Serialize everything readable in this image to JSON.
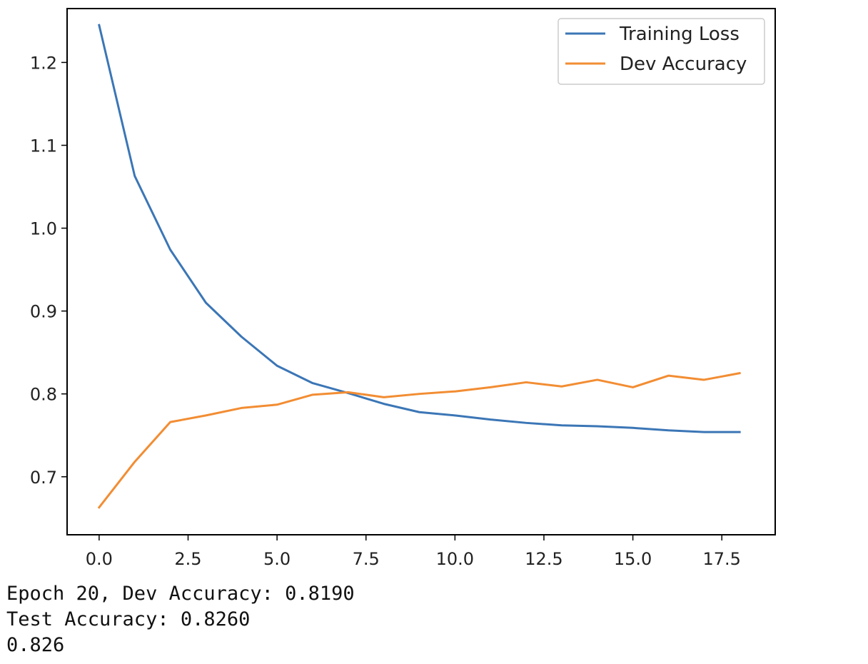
{
  "chart_data": {
    "type": "line",
    "title": "",
    "xlabel": "",
    "ylabel": "",
    "xlim": [
      -0.9,
      19.0
    ],
    "ylim": [
      0.63,
      1.265
    ],
    "x": [
      0,
      1,
      2,
      3,
      4,
      5,
      6,
      7,
      8,
      9,
      10,
      11,
      12,
      13,
      14,
      15,
      16,
      17,
      18
    ],
    "x_ticks": [
      0.0,
      2.5,
      5.0,
      7.5,
      10.0,
      12.5,
      15.0,
      17.5
    ],
    "x_tick_labels": [
      "0.0",
      "2.5",
      "5.0",
      "7.5",
      "10.0",
      "12.5",
      "15.0",
      "17.5"
    ],
    "y_ticks": [
      0.7,
      0.8,
      0.9,
      1.0,
      1.1,
      1.2
    ],
    "y_tick_labels": [
      "0.7",
      "0.8",
      "0.9",
      "1.0",
      "1.1",
      "1.2"
    ],
    "grid": false,
    "legend_position": "top-right",
    "series": [
      {
        "name": "Training Loss",
        "color": "#3b76b6",
        "values": [
          1.245,
          1.063,
          0.974,
          0.91,
          0.869,
          0.834,
          0.813,
          0.801,
          0.788,
          0.778,
          0.774,
          0.769,
          0.765,
          0.762,
          0.761,
          0.759,
          0.756,
          0.754,
          0.754
        ]
      },
      {
        "name": "Dev Accuracy",
        "color": "#f28d33",
        "values": [
          0.663,
          0.718,
          0.766,
          0.774,
          0.783,
          0.787,
          0.799,
          0.802,
          0.796,
          0.8,
          0.803,
          0.808,
          0.814,
          0.809,
          0.817,
          0.808,
          0.822,
          0.817,
          0.825
        ]
      }
    ]
  },
  "output": {
    "lines": [
      "Epoch 20, Dev Accuracy: 0.8190",
      "Test Accuracy: 0.8260",
      "0.826"
    ]
  }
}
